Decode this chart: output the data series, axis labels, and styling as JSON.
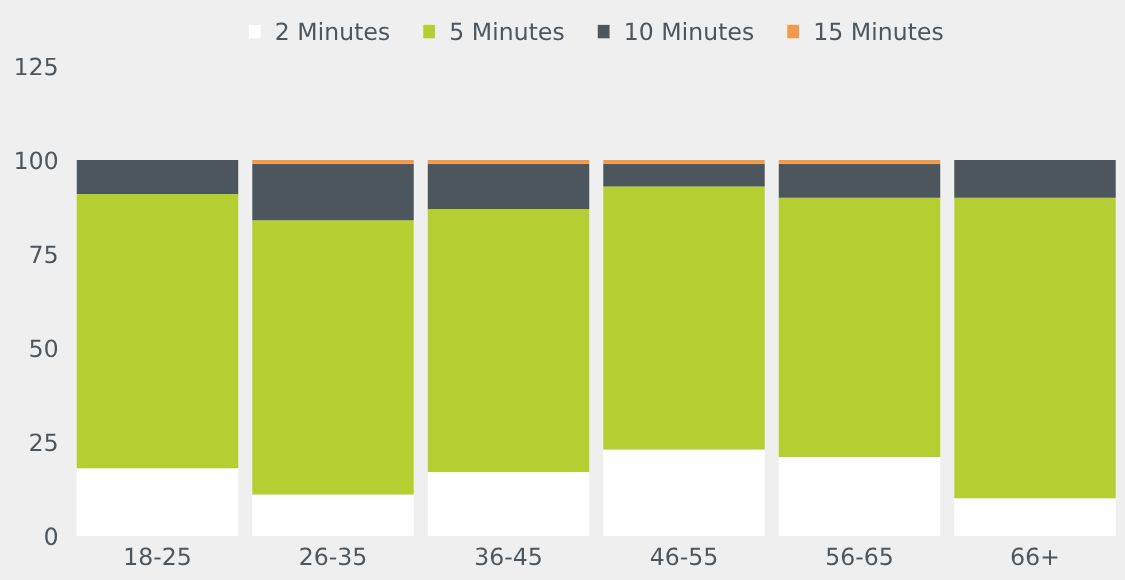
{
  "chart_data": {
    "type": "bar",
    "stacked": true,
    "categories": [
      "18-25",
      "26-35",
      "36-45",
      "46-55",
      "56-65",
      "66+"
    ],
    "series": [
      {
        "name": "2 Minutes",
        "color": "#ffffff",
        "values": [
          18,
          11,
          17,
          23,
          21,
          10
        ]
      },
      {
        "name": "5 Minutes",
        "color": "#b5cf33",
        "values": [
          73,
          73,
          70,
          70,
          69,
          80
        ]
      },
      {
        "name": "10 Minutes",
        "color": "#4d555d",
        "values": [
          9,
          15,
          12,
          6,
          9,
          10
        ]
      },
      {
        "name": "15 Minutes",
        "color": "#f39a4a",
        "values": [
          0,
          1,
          1,
          1,
          1,
          0
        ]
      }
    ],
    "ylim": [
      0,
      125
    ],
    "yticks": [
      0,
      25,
      50,
      75,
      100,
      125
    ],
    "grid": false,
    "legend": "top"
  }
}
